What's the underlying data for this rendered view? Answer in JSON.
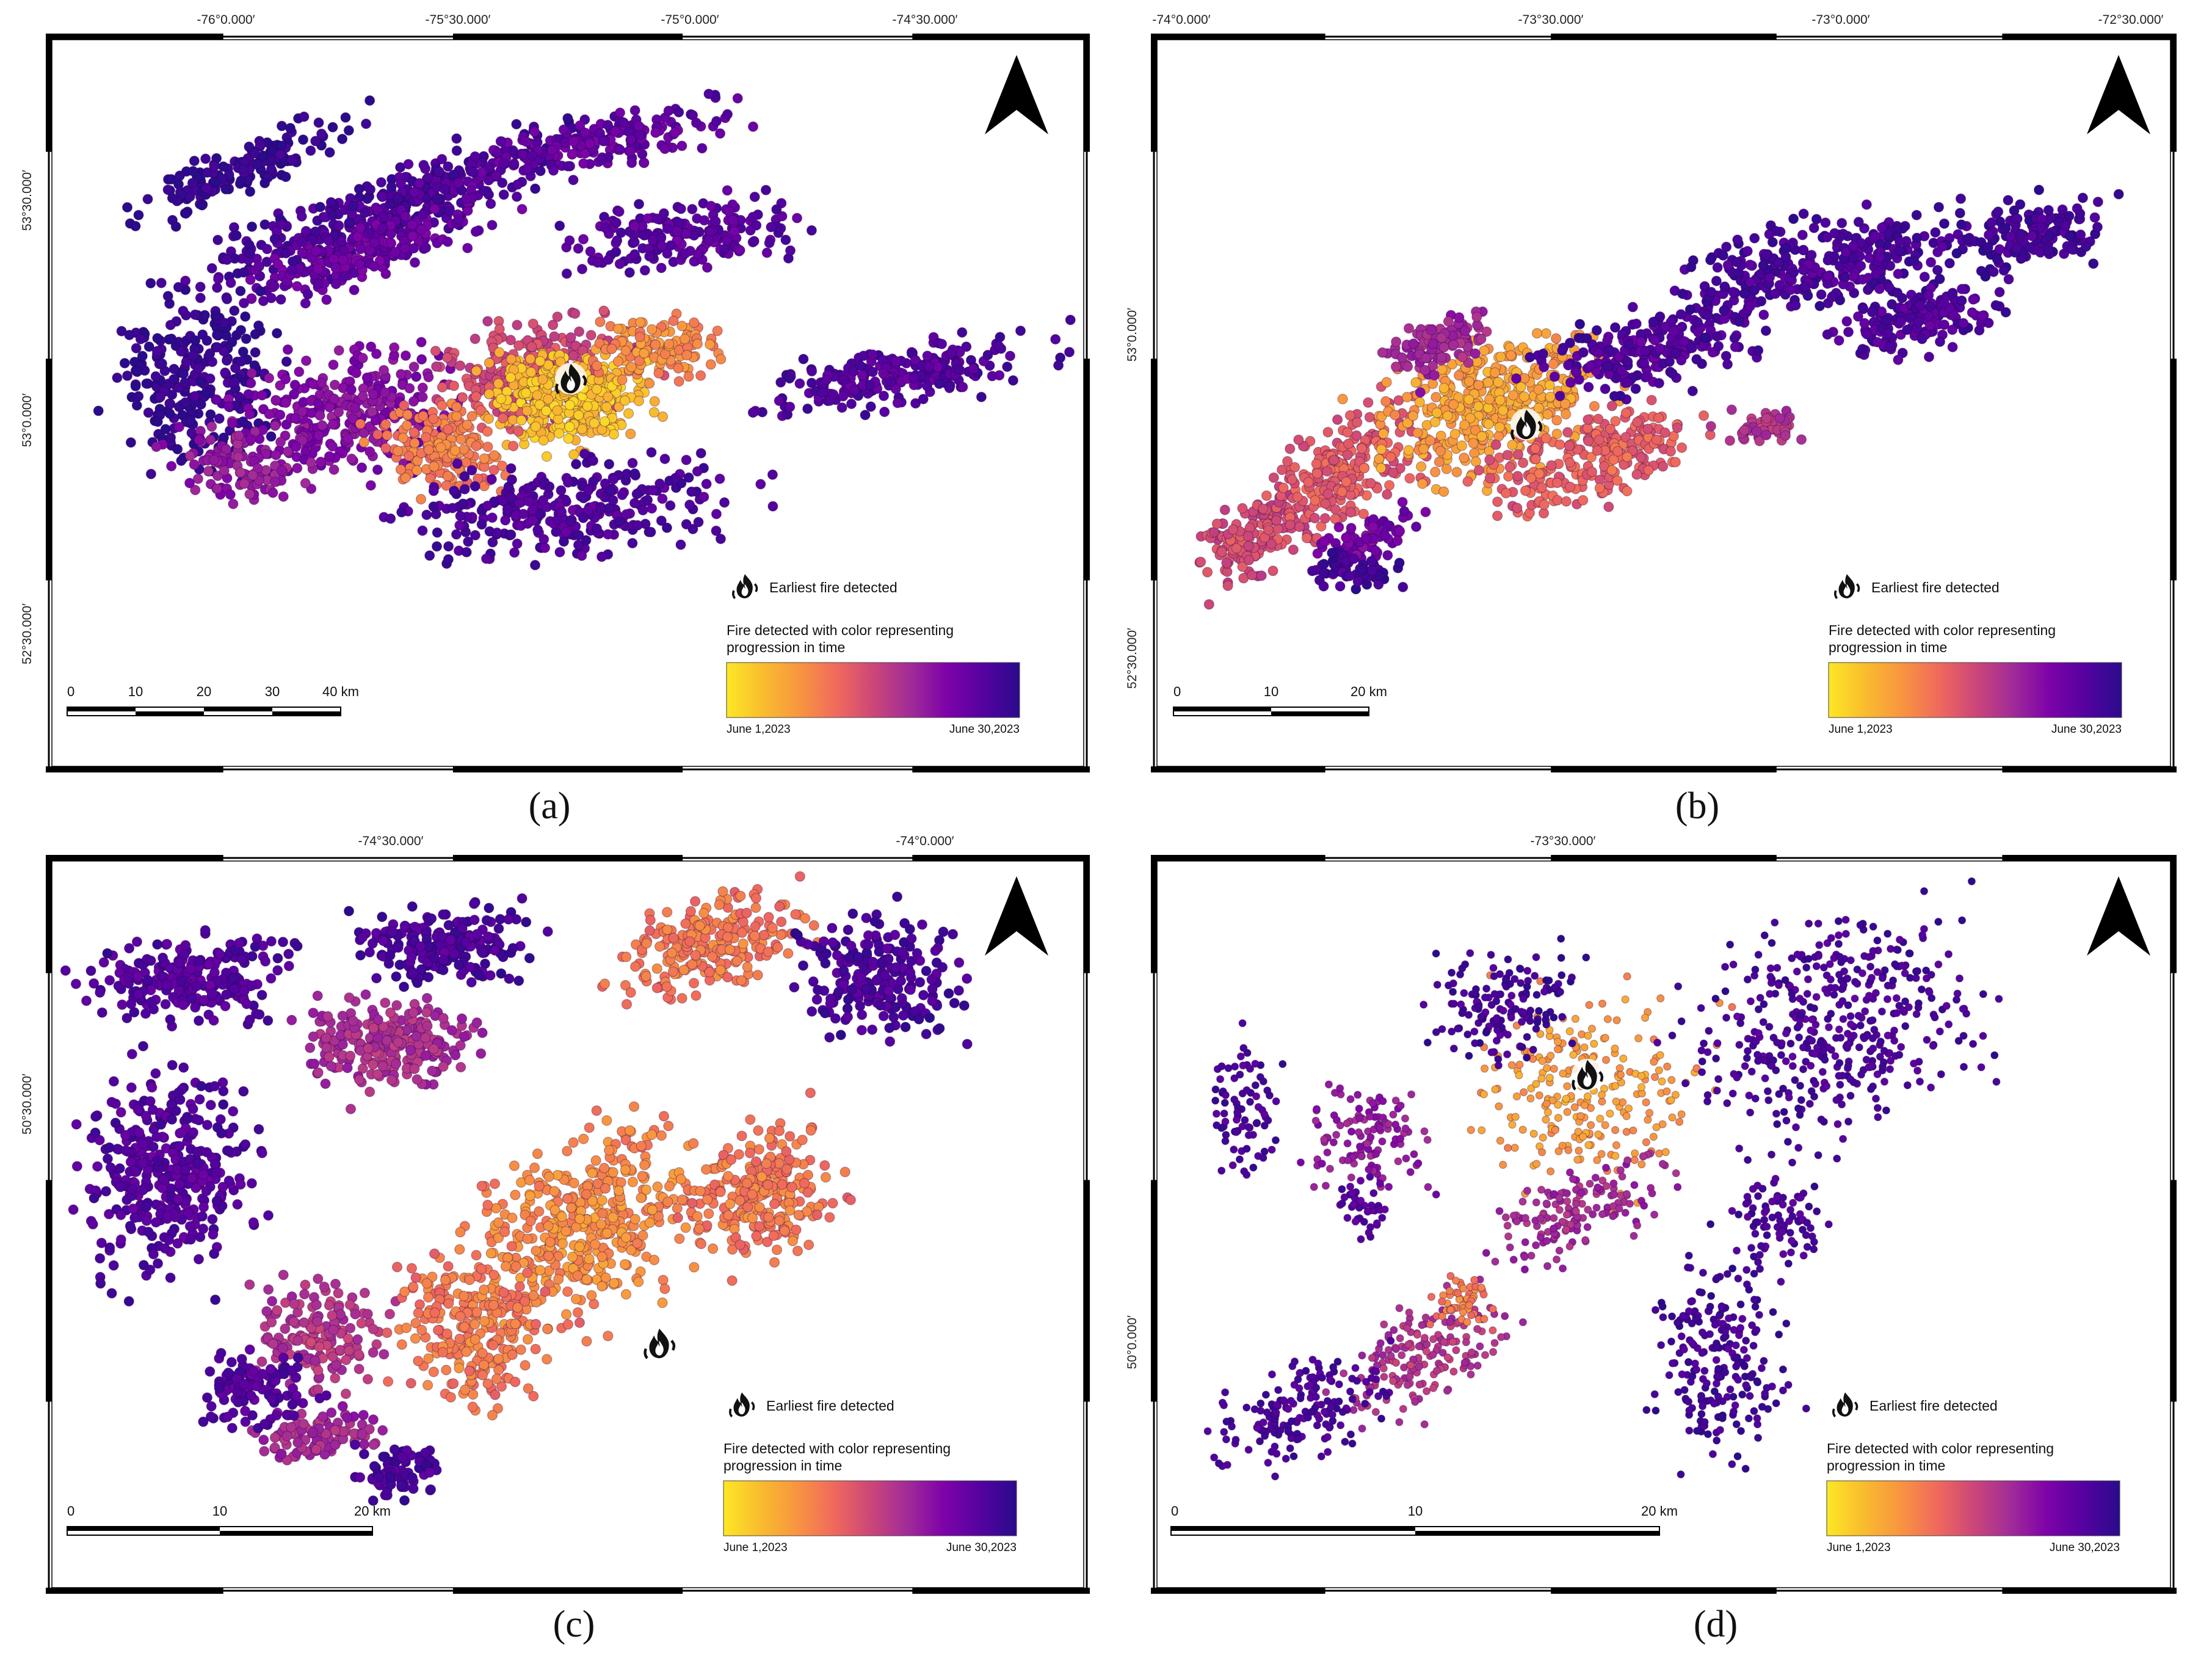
{
  "figure": {
    "colors": {
      "ramp": [
        "#fde725",
        "#f9bc2e",
        "#f89540",
        "#f06a5c",
        "#cc4778",
        "#a22c97",
        "#7e03a8",
        "#5502a0",
        "#2a0b8c"
      ],
      "frame": "#000000",
      "background": "#ffffff"
    },
    "panels": [
      {
        "id": "a",
        "caption": "(a)",
        "top_ticks": [
          "-76°0.000′",
          "-75°30.000′",
          "-75°0.000′",
          "-74°30.000′"
        ],
        "left_ticks": [
          "53°30.000′",
          "53°0.000′",
          "52°30.000′"
        ],
        "scale_labels": [
          "0",
          "10",
          "20",
          "30",
          "40 km"
        ],
        "legend": {
          "icon": "fire-icon",
          "earliest_label": "Earliest fire detected",
          "color_label_line1": "Fire detected with color representing",
          "color_label_line2": "progression in time",
          "start_label": "June 1,2023",
          "end_label": "June 30,2023"
        },
        "north_arrow": "north-arrow-icon"
      },
      {
        "id": "b",
        "caption": "(b)",
        "top_ticks": [
          "-74°0.000′",
          "-73°30.000′",
          "-73°0.000′",
          "-72°30.000′"
        ],
        "left_ticks": [
          "53°0.000′",
          "52°30.000′"
        ],
        "scale_labels": [
          "0",
          "10",
          "20 km"
        ],
        "legend": {
          "icon": "fire-icon",
          "earliest_label": "Earliest fire detected",
          "color_label_line1": "Fire detected with color representing",
          "color_label_line2": "progression in time",
          "start_label": "June 1,2023",
          "end_label": "June 30,2023"
        },
        "north_arrow": "north-arrow-icon"
      },
      {
        "id": "c",
        "caption": "(c)",
        "top_ticks": [
          "-74°30.000′",
          "-74°0.000′"
        ],
        "left_ticks": [
          "50°30.000′"
        ],
        "scale_labels": [
          "0",
          "10",
          "20 km"
        ],
        "legend": {
          "icon": "fire-icon",
          "earliest_label": "Earliest fire detected",
          "color_label_line1": "Fire detected with color representing",
          "color_label_line2": "progression in time",
          "start_label": "June 1,2023",
          "end_label": "June 30,2023"
        },
        "north_arrow": "north-arrow-icon"
      },
      {
        "id": "d",
        "caption": "(d)",
        "top_ticks": [
          "-73°30.000′"
        ],
        "left_ticks": [
          "50°0.000′"
        ],
        "scale_labels": [
          "0",
          "10",
          "20 km"
        ],
        "legend": {
          "icon": "fire-icon",
          "earliest_label": "Earliest fire detected",
          "color_label_line1": "Fire detected with color representing",
          "color_label_line2": "progression in time",
          "start_label": "June 1,2023",
          "end_label": "June 30,2023"
        },
        "north_arrow": "north-arrow-icon"
      }
    ]
  }
}
